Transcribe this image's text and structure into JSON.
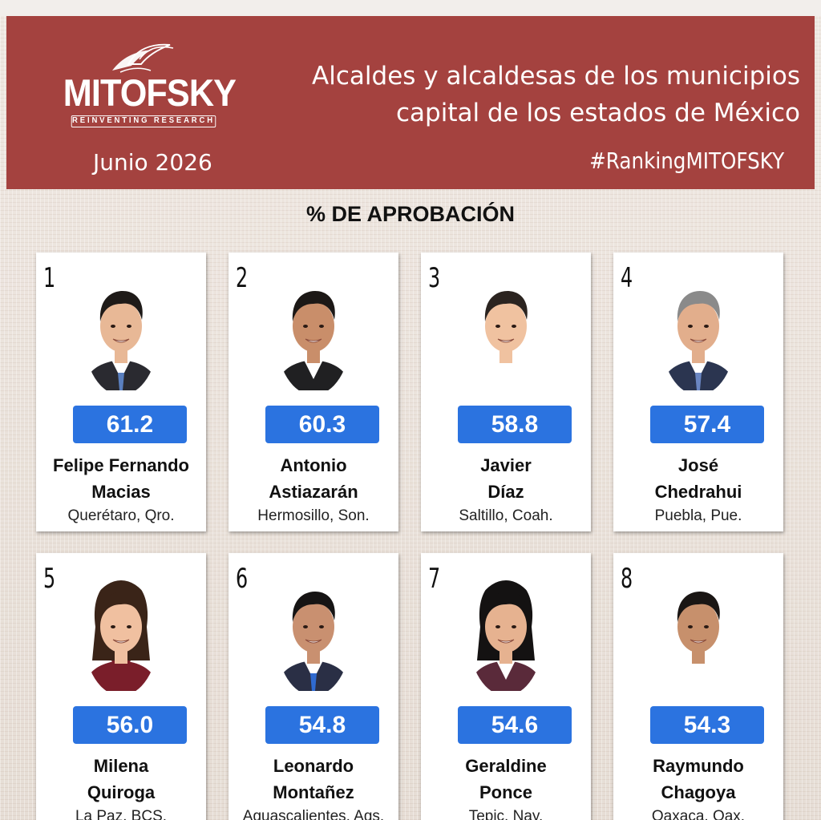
{
  "header": {
    "logo_name": "MITOFSKY",
    "logo_tagline": "REINVENTING RESEARCH",
    "date": "Junio  2026",
    "title_line1": "Alcaldes y alcaldesas de los municipios",
    "title_line2": "capital de los estados de México",
    "hashtag": "#RankingMITOFSKY",
    "background_color": "#a4423f"
  },
  "section_title": "% DE APROBACIÓN",
  "score_badge_color": "#2b73e0",
  "rankings": [
    {
      "rank": "1",
      "score": "61.2",
      "first_name": "Felipe Fernando",
      "last_name": "Macias",
      "place": "Querétaro, Qro."
    },
    {
      "rank": "2",
      "score": "60.3",
      "first_name": "Antonio",
      "last_name": "Astiazarán",
      "place": "Hermosillo, Son."
    },
    {
      "rank": "3",
      "score": "58.8",
      "first_name": "Javier",
      "last_name": "Díaz",
      "place": "Saltillo, Coah."
    },
    {
      "rank": "4",
      "score": "57.4",
      "first_name": "José",
      "last_name": "Chedrahui",
      "place": "Puebla, Pue."
    },
    {
      "rank": "5",
      "score": "56.0",
      "first_name": "Milena",
      "last_name": "Quiroga",
      "place": "La Paz, BCS."
    },
    {
      "rank": "6",
      "score": "54.8",
      "first_name": "Leonardo",
      "last_name": "Montañez",
      "place": "Aguascalientes, Ags."
    },
    {
      "rank": "7",
      "score": "54.6",
      "first_name": "Geraldine",
      "last_name": "Ponce",
      "place": "Tepic, Nay."
    },
    {
      "rank": "8",
      "score": "54.3",
      "first_name": "Raymundo",
      "last_name": "Chagoya",
      "place": "Oaxaca, Oax."
    }
  ]
}
